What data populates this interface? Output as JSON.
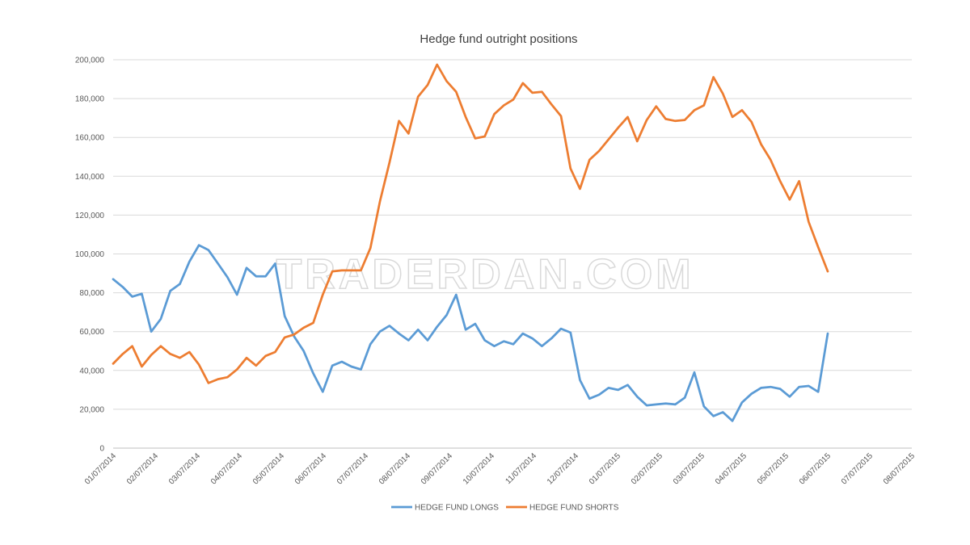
{
  "chart_data": {
    "type": "line",
    "title": "Hedge fund outright positions",
    "watermark": "TRADERDAN.COM",
    "xlabel": "",
    "ylabel": "",
    "ylim": [
      0,
      200000
    ],
    "yticks": [
      "0",
      "20,000",
      "40,000",
      "60,000",
      "80,000",
      "100,000",
      "120,000",
      "140,000",
      "160,000",
      "180,000",
      "200,000"
    ],
    "xticks": [
      "01/07/2014",
      "02/07/2014",
      "03/07/2014",
      "04/07/2014",
      "05/07/2014",
      "06/07/2014",
      "07/07/2014",
      "08/07/2014",
      "09/07/2014",
      "10/07/2014",
      "11/07/2014",
      "12/07/2014",
      "01/07/2015",
      "02/07/2015",
      "03/07/2015",
      "04/07/2015",
      "05/07/2015",
      "06/07/2015",
      "07/07/2015",
      "08/07/2015"
    ],
    "grid": true,
    "legend_position": "bottom",
    "series": [
      {
        "name": "HEDGE FUND LONGS",
        "color": "#5b9bd5",
        "values": [
          87000,
          83000,
          78000,
          79500,
          60000,
          66500,
          81000,
          84500,
          96000,
          104500,
          102000,
          95000,
          88000,
          79000,
          92800,
          88500,
          88500,
          95000,
          68000,
          57500,
          50000,
          38500,
          29000,
          42500,
          44500,
          42000,
          40500,
          53500,
          60000,
          63000,
          59000,
          55500,
          61000,
          55500,
          62500,
          68500,
          79000,
          61000,
          64000,
          55500,
          52500,
          55000,
          53500,
          59000,
          56500,
          52500,
          56500,
          61500,
          59500,
          35000,
          25500,
          27500,
          31000,
          30000,
          32500,
          26500,
          22000,
          22500,
          23000,
          22500,
          26000,
          39000,
          21500,
          16500,
          18500,
          14000,
          23500,
          28000,
          31000,
          31500,
          30500,
          26500,
          31500,
          32000,
          29000,
          59000
        ]
      },
      {
        "name": "HEDGE FUND SHORTS",
        "color": "#ed7d31",
        "values": [
          43500,
          48500,
          52500,
          42000,
          48000,
          52500,
          48500,
          46500,
          49500,
          43000,
          33500,
          35500,
          36500,
          40500,
          46500,
          42500,
          47500,
          49500,
          57000,
          58500,
          62000,
          64500,
          79000,
          91000,
          91500,
          91500,
          91500,
          103000,
          127000,
          147000,
          168500,
          162000,
          181000,
          187000,
          197500,
          189000,
          183500,
          170500,
          159500,
          160500,
          172000,
          176500,
          179500,
          188000,
          183000,
          183500,
          177000,
          171000,
          144000,
          133500,
          148500,
          153000,
          159000,
          165000,
          170500,
          158000,
          169000,
          176000,
          169500,
          168500,
          169000,
          174000,
          176500,
          191000,
          182500,
          170500,
          174000,
          168000,
          156500,
          148500,
          137500,
          128000,
          137500,
          116500,
          103500,
          91000
        ]
      }
    ]
  }
}
